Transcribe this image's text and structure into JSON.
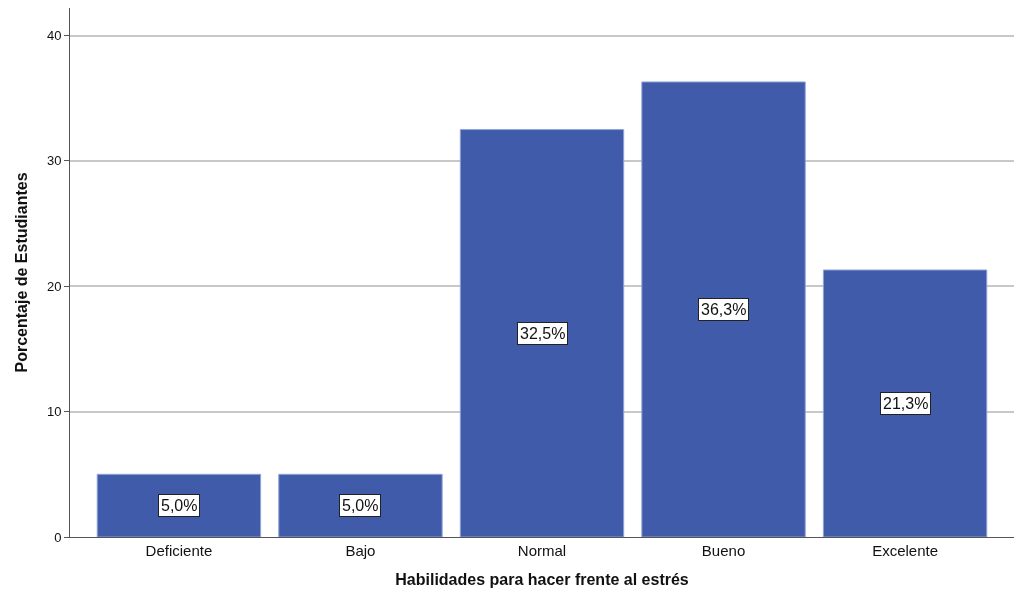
{
  "chart_data": {
    "type": "bar",
    "xlabel": "Habilidades para hacer frente al estrés",
    "ylabel": "Porcentaje de Estudiantes",
    "categories": [
      "Deficiente",
      "Bajo",
      "Normal",
      "Bueno",
      "Excelente"
    ],
    "values": [
      5.0,
      5.0,
      32.5,
      36.3,
      21.3
    ],
    "value_labels": [
      "5,0%",
      "5,0%",
      "32,5%",
      "36,3%",
      "21,3%"
    ],
    "color": "#3f5ba9",
    "ylim": [
      0,
      42.2
    ],
    "yticks": [
      0,
      10,
      20,
      30,
      40
    ],
    "grid": "y"
  }
}
